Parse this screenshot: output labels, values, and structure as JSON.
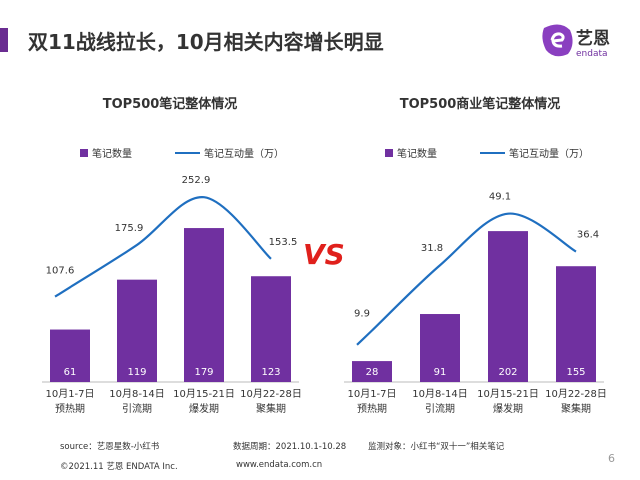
{
  "title": "双11战线拉长，10月相关内容增长明显",
  "logo": {
    "text_cn": "艺恩",
    "text_en": "endata"
  },
  "vs": "VS",
  "colors": {
    "bar": "#7030a0",
    "line": "#1f6fc0",
    "accent": "#6a2c91",
    "bar_label": "#ffffff"
  },
  "chart_data": [
    {
      "type": "bar+line",
      "title": "TOP500笔记整体情况",
      "categories": [
        "10月1-7日\n预热期",
        "10月8-14日\n引流期",
        "10月15-21日\n爆发期",
        "10月22-28日\n聚集期"
      ],
      "series": [
        {
          "name": "笔记数量",
          "type": "bar",
          "values": [
            61,
            119,
            179,
            123
          ]
        },
        {
          "name": "笔记互动量（万）",
          "type": "line",
          "values": [
            107.6,
            175.9,
            252.9,
            153.5
          ]
        }
      ],
      "legend": "top"
    },
    {
      "type": "bar+line",
      "title": "TOP500商业笔记整体情况",
      "categories": [
        "10月1-7日\n预热期",
        "10月8-14日\n引流期",
        "10月15-21日\n爆发期",
        "10月22-28日\n聚集期"
      ],
      "series": [
        {
          "name": "笔记数量",
          "type": "bar",
          "values": [
            28,
            91,
            202,
            155
          ]
        },
        {
          "name": "笔记互动量（万）",
          "type": "line",
          "values": [
            9.9,
            31.8,
            49.1,
            36.4
          ]
        }
      ],
      "legend": "top"
    }
  ],
  "footer": {
    "source": "source：艺恩星数-小红书",
    "period": "数据周期：2021.10.1-10.28",
    "target": "监测对象：小红书“双十一”相关笔记",
    "copyright": "©2021.11 艺恩 ENDATA Inc.",
    "url": "www.endata.com.cn",
    "page": "6"
  }
}
